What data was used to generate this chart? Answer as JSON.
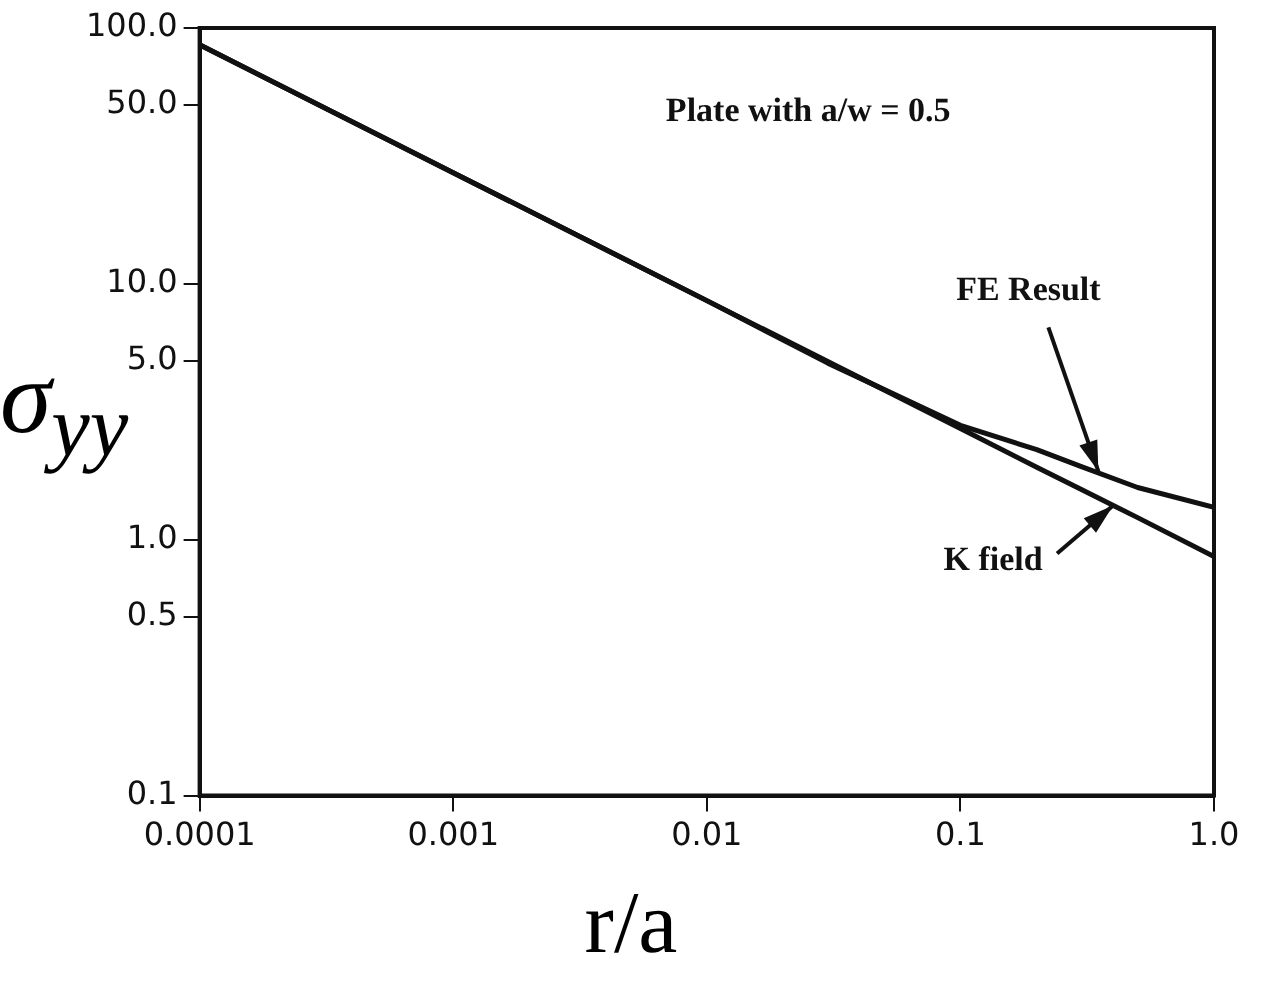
{
  "chart_data": {
    "type": "line",
    "xlabel": "r/a",
    "ylabel": "σ$_{yy}$",
    "log": "xy",
    "grid": false,
    "legend": false,
    "marker": "none",
    "line_style": "solid",
    "xlim": [
      0.0001,
      1
    ],
    "xticks": [
      0.0001,
      0.001,
      0.01,
      0.1,
      {
        "value": 1,
        "label": "1.0"
      }
    ],
    "ylim": [
      0.1,
      100
    ],
    "yticks": [
      0.1,
      0.5,
      {
        "value": 1,
        "label": "1.0"
      },
      {
        "value": 5,
        "label": "5.0"
      },
      {
        "value": 10,
        "label": "10.0"
      },
      {
        "value": 50,
        "label": "50.0"
      },
      {
        "value": 100,
        "label": "100.0"
      }
    ],
    "series": [
      {
        "color": "#111111",
        "x": [
          0.0001,
          0.001,
          0.01,
          0.03,
          0.1,
          0.2,
          0.3,
          0.5,
          1
        ],
        "values": [
          86,
          27.2,
          8.6,
          4.9,
          2.8,
          2.25,
          1.93,
          1.6,
          1.34
        ]
      },
      {
        "color": "#111111",
        "x": [
          0.0001,
          0.001,
          0.01,
          0.03,
          0.1,
          0.2,
          0.3,
          0.5,
          1
        ],
        "values": [
          86,
          27.2,
          8.6,
          4.97,
          2.72,
          1.92,
          1.57,
          1.22,
          0.86
        ]
      }
    ],
    "annotations": [
      "Plate with a/w = 0.5",
      {
        "text": "FE Result",
        "x": 0.35,
        "y": 1.85
      },
      {
        "text": "K field",
        "x": 0.4,
        "y": 1.36
      }
    ]
  }
}
